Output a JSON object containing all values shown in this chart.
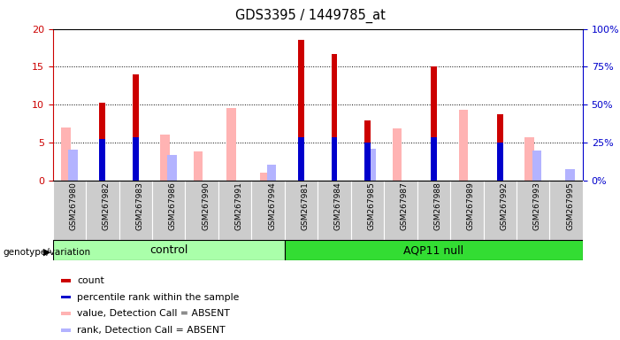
{
  "title": "GDS3395 / 1449785_at",
  "samples": [
    "GSM267980",
    "GSM267982",
    "GSM267983",
    "GSM267986",
    "GSM267990",
    "GSM267991",
    "GSM267994",
    "GSM267981",
    "GSM267984",
    "GSM267985",
    "GSM267987",
    "GSM267988",
    "GSM267989",
    "GSM267992",
    "GSM267993",
    "GSM267995"
  ],
  "n_control": 7,
  "n_aqp11": 9,
  "count_values": [
    0,
    10.3,
    14.0,
    0,
    0,
    0,
    0,
    18.5,
    16.7,
    7.9,
    0,
    15.0,
    0,
    8.7,
    0,
    0
  ],
  "rank_values": [
    0,
    5.5,
    5.7,
    0,
    0,
    0,
    0,
    5.7,
    5.7,
    5.0,
    0,
    5.7,
    0,
    5.0,
    0,
    0
  ],
  "pink_values": [
    7.0,
    0,
    0,
    6.0,
    3.8,
    9.5,
    1.0,
    0,
    0,
    0,
    6.9,
    0,
    9.3,
    0,
    5.7,
    0
  ],
  "lightblue_values": [
    4.0,
    0,
    0,
    3.3,
    0,
    0,
    2.0,
    0,
    0,
    4.2,
    0,
    0,
    0,
    0,
    3.9,
    1.5
  ],
  "colors": {
    "count": "#cc0000",
    "rank": "#0000cc",
    "pink": "#ffb3b3",
    "lightblue": "#b3b3ff",
    "bg_control": "#aaffaa",
    "bg_aqp11": "#33dd33",
    "axis_left": "#cc0000",
    "axis_right": "#0000cc",
    "tick_bg": "#cccccc"
  },
  "ylim_left": [
    0,
    20
  ],
  "ylim_right": [
    0,
    100
  ],
  "yticks_left": [
    0,
    5,
    10,
    15,
    20
  ],
  "yticks_right": [
    0,
    25,
    50,
    75,
    100
  ],
  "count_bar_width": 0.18,
  "absent_bar_width": 0.28,
  "legend_items": [
    {
      "label": "count",
      "color": "#cc0000"
    },
    {
      "label": "percentile rank within the sample",
      "color": "#0000cc"
    },
    {
      "label": "value, Detection Call = ABSENT",
      "color": "#ffb3b3"
    },
    {
      "label": "rank, Detection Call = ABSENT",
      "color": "#b3b3ff"
    }
  ]
}
